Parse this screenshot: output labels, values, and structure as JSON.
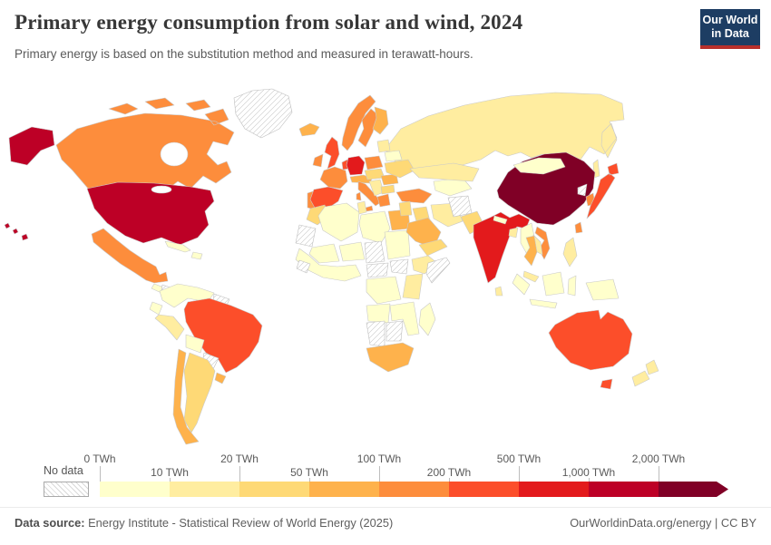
{
  "header": {
    "title": "Primary energy consumption from solar and wind, 2024",
    "subtitle": "Primary energy is based on the substitution method and measured in terawatt-hours.",
    "logo_line1": "Our World",
    "logo_line2": "in Data",
    "logo_colors": {
      "background": "#1d3d63",
      "underline": "#b8302b"
    }
  },
  "legend": {
    "no_data_label": "No data",
    "tick_labels": [
      "0 TWh",
      "10 TWh",
      "20 TWh",
      "50 TWh",
      "100 TWh",
      "200 TWh",
      "500 TWh",
      "1,000 TWh",
      "2,000 TWh"
    ],
    "bin_colors": [
      "#FFFFCC",
      "#FFEDA0",
      "#FED976",
      "#FEB24C",
      "#FD8D3C",
      "#FC4E2A",
      "#E31A1C",
      "#BD0026",
      "#800026"
    ]
  },
  "footer": {
    "source_label": "Data source:",
    "source_text": " Energy Institute - Statistical Review of World Energy (2025)",
    "credit": "OurWorldinData.org/energy | CC BY"
  },
  "chart_data": {
    "type": "choropleth-map",
    "title": "Primary energy consumption from solar and wind, 2024",
    "unit": "TWh",
    "bin_thresholds": [
      0,
      10,
      20,
      50,
      100,
      200,
      500,
      1000,
      2000
    ],
    "bin_ranges": [
      "0-10 TWh",
      "10-20 TWh",
      "20-50 TWh",
      "50-100 TWh",
      "100-200 TWh",
      "200-500 TWh",
      "500-1,000 TWh",
      "1,000-2,000 TWh",
      "over 2,000 TWh"
    ],
    "bin_colors": [
      "#FFFFCC",
      "#FFEDA0",
      "#FED976",
      "#FEB24C",
      "#FD8D3C",
      "#FC4E2A",
      "#E31A1C",
      "#BD0026",
      "#800026"
    ],
    "no_data_style": "gray diagonal hatching",
    "countries": {
      "united-states": 7,
      "hawaii": 7,
      "canada": 4,
      "mexico": 4,
      "greenland": -1,
      "cuba": 0,
      "hispaniola": 0,
      "central-america": 0,
      "honduras": -1,
      "colombia-venezuela": 0,
      "guyanas": -1,
      "ecuador": 0,
      "peru": 1,
      "bolivia": 0,
      "brazil": 5,
      "paraguay": -1,
      "uruguay": 3,
      "argentina": 2,
      "chile": 3,
      "iceland": 3,
      "united-kingdom": 5,
      "ireland": 4,
      "norway": 4,
      "sweden": 4,
      "finland": 3,
      "denmark": 5,
      "germany": 6,
      "benelux": 5,
      "france": 4,
      "spain": 5,
      "portugal": 4,
      "italy": 4,
      "switzerland-austria": 3,
      "poland": 4,
      "czechia-hungary": 2,
      "balkans": 1,
      "greece": 4,
      "bulgaria": 2,
      "romania": 3,
      "ukraine": 2,
      "belarus": 0,
      "baltics": 1,
      "turkey": 4,
      "russia": 1,
      "kazakhstan": 1,
      "central-asia": 0,
      "afghanistan": -1,
      "iran": 1,
      "iraq": 2,
      "levant": 2,
      "saudi-arabia": 3,
      "yemen-oman": 2,
      "pakistan": 2,
      "india": 6,
      "nepal": 0,
      "bangladesh": 1,
      "sri-lanka": 1,
      "myanmar": 0,
      "china": 8,
      "mongolia": 0,
      "north-korea": -1,
      "south-korea": 4,
      "japan": 5,
      "taiwan": 4,
      "thailand": 3,
      "vietnam": 4,
      "laos-cambodia": 1,
      "malaysia": 1,
      "philippines": 1,
      "indonesia": 0,
      "papua-new-guinea": 0,
      "australia": 5,
      "new-zealand": 1,
      "morocco": 2,
      "western-sahara-mauritania": -1,
      "algeria": 0,
      "tunisia": 1,
      "libya": 0,
      "egypt": 3,
      "mali": 0,
      "niger": 0,
      "chad": -1,
      "sudan": 0,
      "west-africa": 0,
      "guinea-region": -1,
      "ethiopia": 1,
      "somalia": -1,
      "south-sudan": -1,
      "central-african-republic": -1,
      "dr-congo": 0,
      "kenya-tanzania": 1,
      "angola": 0,
      "zambia-mozambique": 0,
      "namibia": -1,
      "botswana": -1,
      "south-africa": 3,
      "madagascar": 0
    }
  }
}
